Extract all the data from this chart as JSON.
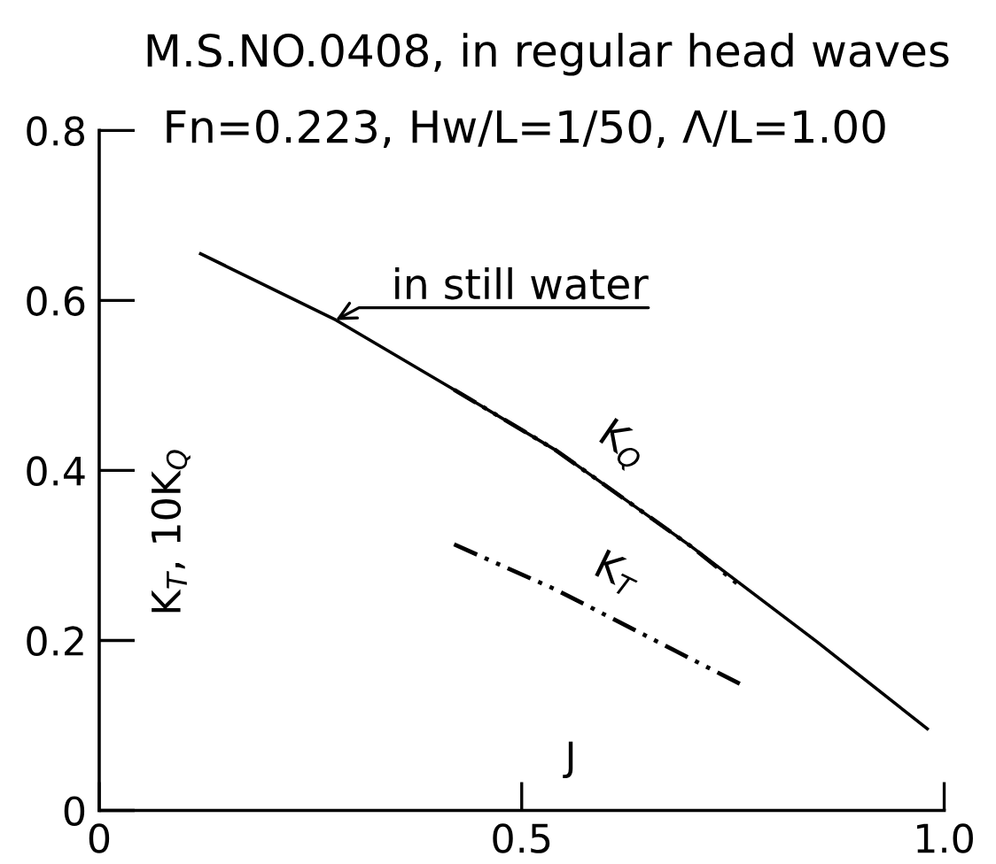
{
  "chart_data": {
    "type": "line",
    "title": "M.S.NO.0408, in regular head waves",
    "subtitle": "Fn=0.223, Hw/L=1/50, Λ/L=1.00",
    "xlabel": "J",
    "ylabel": "K$_{T}$, 10K$_{Q}$",
    "xlim": [
      0,
      1
    ],
    "xticks": [
      0,
      0.5,
      {
        "value": 1,
        "label": "1.0"
      }
    ],
    "ylim": [
      0,
      0.8
    ],
    "yticks": [
      0,
      0.2,
      0.4,
      0.6,
      0.8
    ],
    "grid": false,
    "legend": false,
    "marker": "none",
    "series": [
      {
        "color": "#000000",
        "line_style": "solid",
        "x": [
          0.12,
          0.28,
          0.42,
          0.54,
          0.7,
          0.85,
          0.98
        ],
        "values": [
          0.655,
          0.577,
          0.495,
          0.424,
          0.311,
          0.198,
          0.096
        ]
      },
      {
        "name": "K$_{Q}$",
        "color": "#000000",
        "line_style": "dashdot",
        "x": [
          0.42,
          0.54,
          0.7,
          0.76
        ],
        "values": [
          0.495,
          0.424,
          0.311,
          0.263
        ]
      },
      {
        "name": "K$_{T}$",
        "color": "#000000",
        "line_style": "dashdot",
        "x": [
          0.42,
          0.54,
          0.76
        ],
        "values": [
          0.313,
          0.26,
          0.148
        ]
      }
    ],
    "annotations": [
      {
        "text": "in still water",
        "x": 0.28,
        "y": 0.577
      }
    ]
  }
}
